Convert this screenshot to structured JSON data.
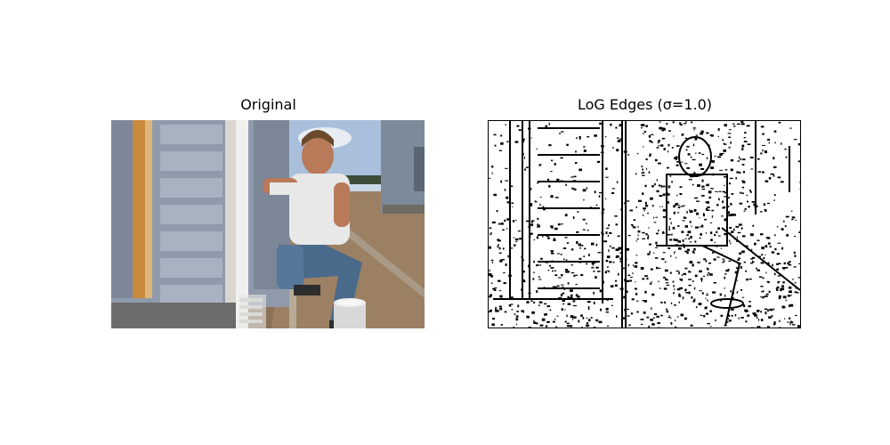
{
  "figure": {
    "left_title": "Original",
    "right_title": "LoG Edges (σ=1.0)"
  }
}
